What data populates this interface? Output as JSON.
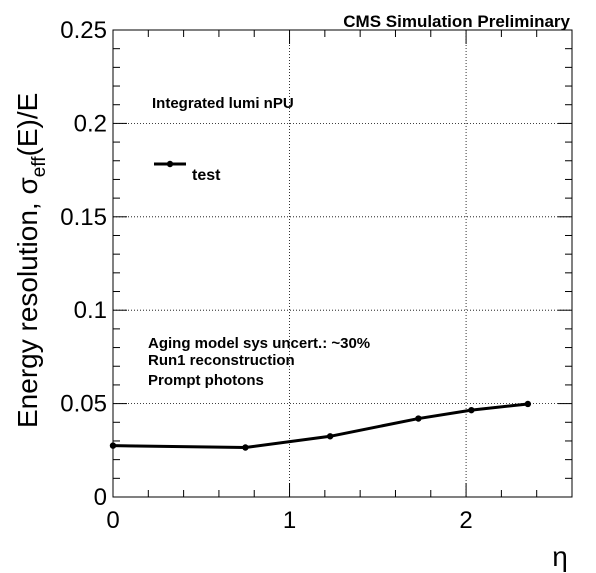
{
  "header": {
    "experiment_label": "CMS Simulation Preliminary"
  },
  "annotations": {
    "lumi_line": "Integrated lumi  nPU",
    "notes": [
      "Aging model sys uncert.: ~30%",
      "Run1 reconstruction",
      "Prompt photons"
    ]
  },
  "chart_data": {
    "type": "line",
    "title": "",
    "xlabel": "η",
    "ylabel_main": "Energy resolution,  σ",
    "ylabel_sub": "eff",
    "ylabel_tail": "(E)/E",
    "xlim": [
      0,
      2.6
    ],
    "ylim": [
      0,
      0.25
    ],
    "x_ticks": [
      0,
      1,
      2
    ],
    "x_tick_labels": [
      "0",
      "1",
      "2"
    ],
    "y_ticks": [
      0,
      0.05,
      0.1,
      0.15,
      0.2,
      0.25
    ],
    "y_tick_labels": [
      "0",
      "0.05",
      "0.1",
      "0.15",
      "0.2",
      "0.25"
    ],
    "grid": true,
    "legend_position": "top-left",
    "series": [
      {
        "name": "test",
        "color": "#000000",
        "x": [
          0.0,
          0.75,
          1.23,
          1.73,
          2.03,
          2.35
        ],
        "y": [
          0.0275,
          0.0265,
          0.0325,
          0.042,
          0.0465,
          0.0498
        ]
      }
    ]
  }
}
